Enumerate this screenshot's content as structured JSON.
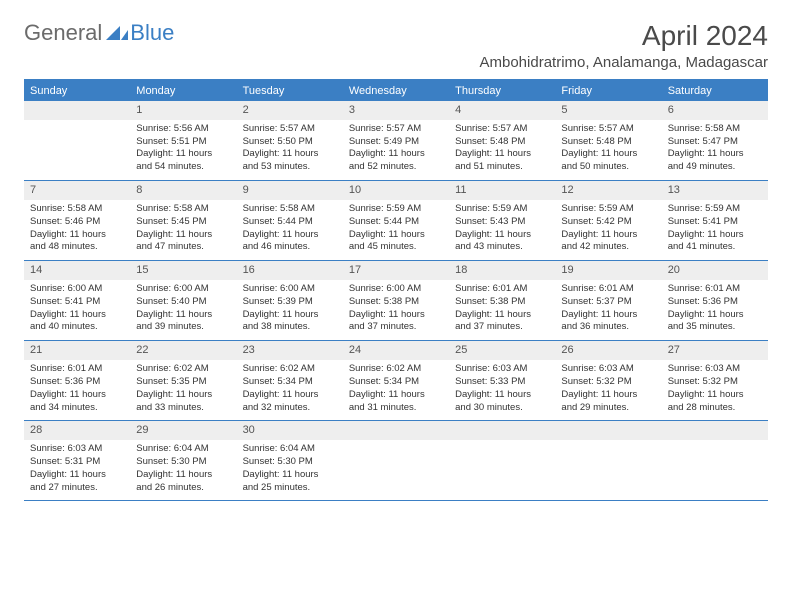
{
  "logo": {
    "text1": "General",
    "text2": "Blue"
  },
  "title": "April 2024",
  "location": "Ambohidratrimo, Analamanga, Madagascar",
  "colors": {
    "accent": "#3b7fc4",
    "header_bg": "#3b7fc4",
    "header_text": "#ffffff",
    "daynum_bg": "#eeeeee",
    "text": "#333333"
  },
  "day_headers": [
    "Sunday",
    "Monday",
    "Tuesday",
    "Wednesday",
    "Thursday",
    "Friday",
    "Saturday"
  ],
  "weeks": [
    [
      {
        "n": "",
        "sr": "",
        "ss": "",
        "dl": ""
      },
      {
        "n": "1",
        "sr": "5:56 AM",
        "ss": "5:51 PM",
        "dl": "11 hours and 54 minutes."
      },
      {
        "n": "2",
        "sr": "5:57 AM",
        "ss": "5:50 PM",
        "dl": "11 hours and 53 minutes."
      },
      {
        "n": "3",
        "sr": "5:57 AM",
        "ss": "5:49 PM",
        "dl": "11 hours and 52 minutes."
      },
      {
        "n": "4",
        "sr": "5:57 AM",
        "ss": "5:48 PM",
        "dl": "11 hours and 51 minutes."
      },
      {
        "n": "5",
        "sr": "5:57 AM",
        "ss": "5:48 PM",
        "dl": "11 hours and 50 minutes."
      },
      {
        "n": "6",
        "sr": "5:58 AM",
        "ss": "5:47 PM",
        "dl": "11 hours and 49 minutes."
      }
    ],
    [
      {
        "n": "7",
        "sr": "5:58 AM",
        "ss": "5:46 PM",
        "dl": "11 hours and 48 minutes."
      },
      {
        "n": "8",
        "sr": "5:58 AM",
        "ss": "5:45 PM",
        "dl": "11 hours and 47 minutes."
      },
      {
        "n": "9",
        "sr": "5:58 AM",
        "ss": "5:44 PM",
        "dl": "11 hours and 46 minutes."
      },
      {
        "n": "10",
        "sr": "5:59 AM",
        "ss": "5:44 PM",
        "dl": "11 hours and 45 minutes."
      },
      {
        "n": "11",
        "sr": "5:59 AM",
        "ss": "5:43 PM",
        "dl": "11 hours and 43 minutes."
      },
      {
        "n": "12",
        "sr": "5:59 AM",
        "ss": "5:42 PM",
        "dl": "11 hours and 42 minutes."
      },
      {
        "n": "13",
        "sr": "5:59 AM",
        "ss": "5:41 PM",
        "dl": "11 hours and 41 minutes."
      }
    ],
    [
      {
        "n": "14",
        "sr": "6:00 AM",
        "ss": "5:41 PM",
        "dl": "11 hours and 40 minutes."
      },
      {
        "n": "15",
        "sr": "6:00 AM",
        "ss": "5:40 PM",
        "dl": "11 hours and 39 minutes."
      },
      {
        "n": "16",
        "sr": "6:00 AM",
        "ss": "5:39 PM",
        "dl": "11 hours and 38 minutes."
      },
      {
        "n": "17",
        "sr": "6:00 AM",
        "ss": "5:38 PM",
        "dl": "11 hours and 37 minutes."
      },
      {
        "n": "18",
        "sr": "6:01 AM",
        "ss": "5:38 PM",
        "dl": "11 hours and 37 minutes."
      },
      {
        "n": "19",
        "sr": "6:01 AM",
        "ss": "5:37 PM",
        "dl": "11 hours and 36 minutes."
      },
      {
        "n": "20",
        "sr": "6:01 AM",
        "ss": "5:36 PM",
        "dl": "11 hours and 35 minutes."
      }
    ],
    [
      {
        "n": "21",
        "sr": "6:01 AM",
        "ss": "5:36 PM",
        "dl": "11 hours and 34 minutes."
      },
      {
        "n": "22",
        "sr": "6:02 AM",
        "ss": "5:35 PM",
        "dl": "11 hours and 33 minutes."
      },
      {
        "n": "23",
        "sr": "6:02 AM",
        "ss": "5:34 PM",
        "dl": "11 hours and 32 minutes."
      },
      {
        "n": "24",
        "sr": "6:02 AM",
        "ss": "5:34 PM",
        "dl": "11 hours and 31 minutes."
      },
      {
        "n": "25",
        "sr": "6:03 AM",
        "ss": "5:33 PM",
        "dl": "11 hours and 30 minutes."
      },
      {
        "n": "26",
        "sr": "6:03 AM",
        "ss": "5:32 PM",
        "dl": "11 hours and 29 minutes."
      },
      {
        "n": "27",
        "sr": "6:03 AM",
        "ss": "5:32 PM",
        "dl": "11 hours and 28 minutes."
      }
    ],
    [
      {
        "n": "28",
        "sr": "6:03 AM",
        "ss": "5:31 PM",
        "dl": "11 hours and 27 minutes."
      },
      {
        "n": "29",
        "sr": "6:04 AM",
        "ss": "5:30 PM",
        "dl": "11 hours and 26 minutes."
      },
      {
        "n": "30",
        "sr": "6:04 AM",
        "ss": "5:30 PM",
        "dl": "11 hours and 25 minutes."
      },
      {
        "n": "",
        "sr": "",
        "ss": "",
        "dl": ""
      },
      {
        "n": "",
        "sr": "",
        "ss": "",
        "dl": ""
      },
      {
        "n": "",
        "sr": "",
        "ss": "",
        "dl": ""
      },
      {
        "n": "",
        "sr": "",
        "ss": "",
        "dl": ""
      }
    ]
  ],
  "labels": {
    "sunrise": "Sunrise:",
    "sunset": "Sunset:",
    "daylight": "Daylight:"
  }
}
